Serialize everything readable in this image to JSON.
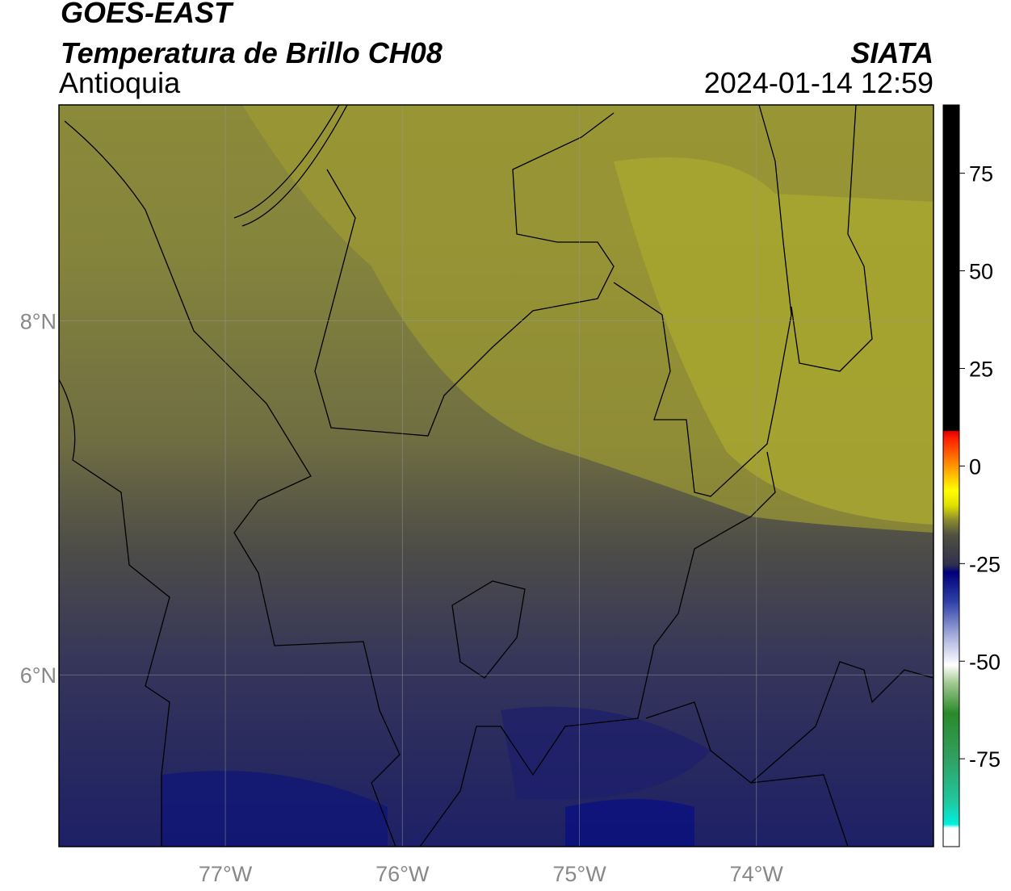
{
  "header": {
    "title": "GOES-EAST",
    "subtitle": "Temperatura de Brillo CH08",
    "region": "Antioquia",
    "source": "SIATA",
    "datetime": "2024-01-14 12:59"
  },
  "map": {
    "xlim": [
      -77.94,
      -73.0
    ],
    "ylim": [
      5.03,
      9.22
    ],
    "xticks": [
      {
        "value": -77,
        "label": "77°W"
      },
      {
        "value": -76,
        "label": "76°W"
      },
      {
        "value": -75,
        "label": "75°W"
      },
      {
        "value": -74,
        "label": "74°W"
      }
    ],
    "yticks": [
      {
        "value": 6,
        "label": "6°N"
      },
      {
        "value": 8,
        "label": "8°N"
      }
    ],
    "grid": true
  },
  "colorbar": {
    "lim": [
      -97.5,
      92.5
    ],
    "ticks": [
      -75,
      -50,
      -25,
      0,
      25,
      50,
      75
    ]
  }
}
